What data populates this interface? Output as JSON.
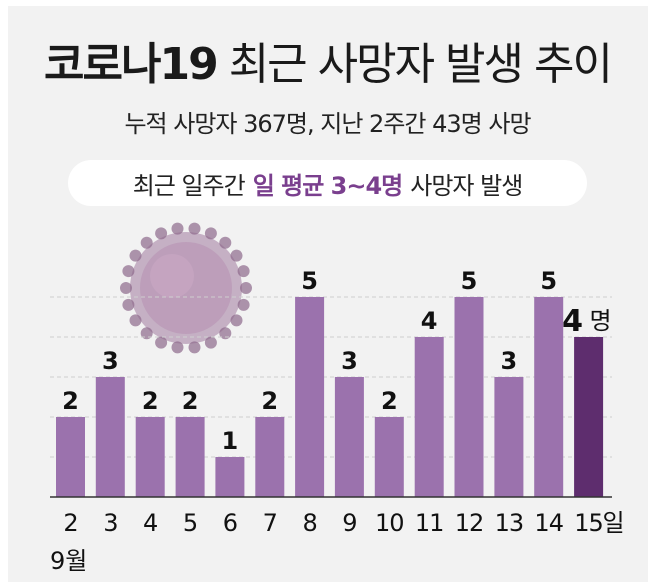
{
  "header": {
    "title_bold": "코로나19",
    "title_rest": "최근 사망자 발생 추이",
    "subtitle": "누적 사망자 367명, 지난 2주간 43명 사망",
    "pill_prefix": "최근 일주간",
    "pill_highlight": "일 평균 3~4명",
    "pill_suffix": "사망자 발생"
  },
  "chart_data": {
    "type": "bar",
    "categories": [
      "2",
      "3",
      "4",
      "5",
      "6",
      "7",
      "8",
      "9",
      "10",
      "11",
      "12",
      "13",
      "14",
      "15"
    ],
    "values": [
      2,
      3,
      2,
      2,
      1,
      2,
      5,
      3,
      2,
      4,
      5,
      3,
      5,
      4
    ],
    "x_suffix": "일",
    "month_label": "9월",
    "last_value_unit": "명",
    "ylim": [
      0,
      5
    ],
    "grid": true,
    "colors": {
      "bar": "#9b72ad",
      "highlight_bar": "#5e2d6e",
      "grid": "#cfcfcf",
      "baseline": "#333333"
    },
    "highlight_index": 13,
    "decoration": "virus-illustration-icon"
  }
}
